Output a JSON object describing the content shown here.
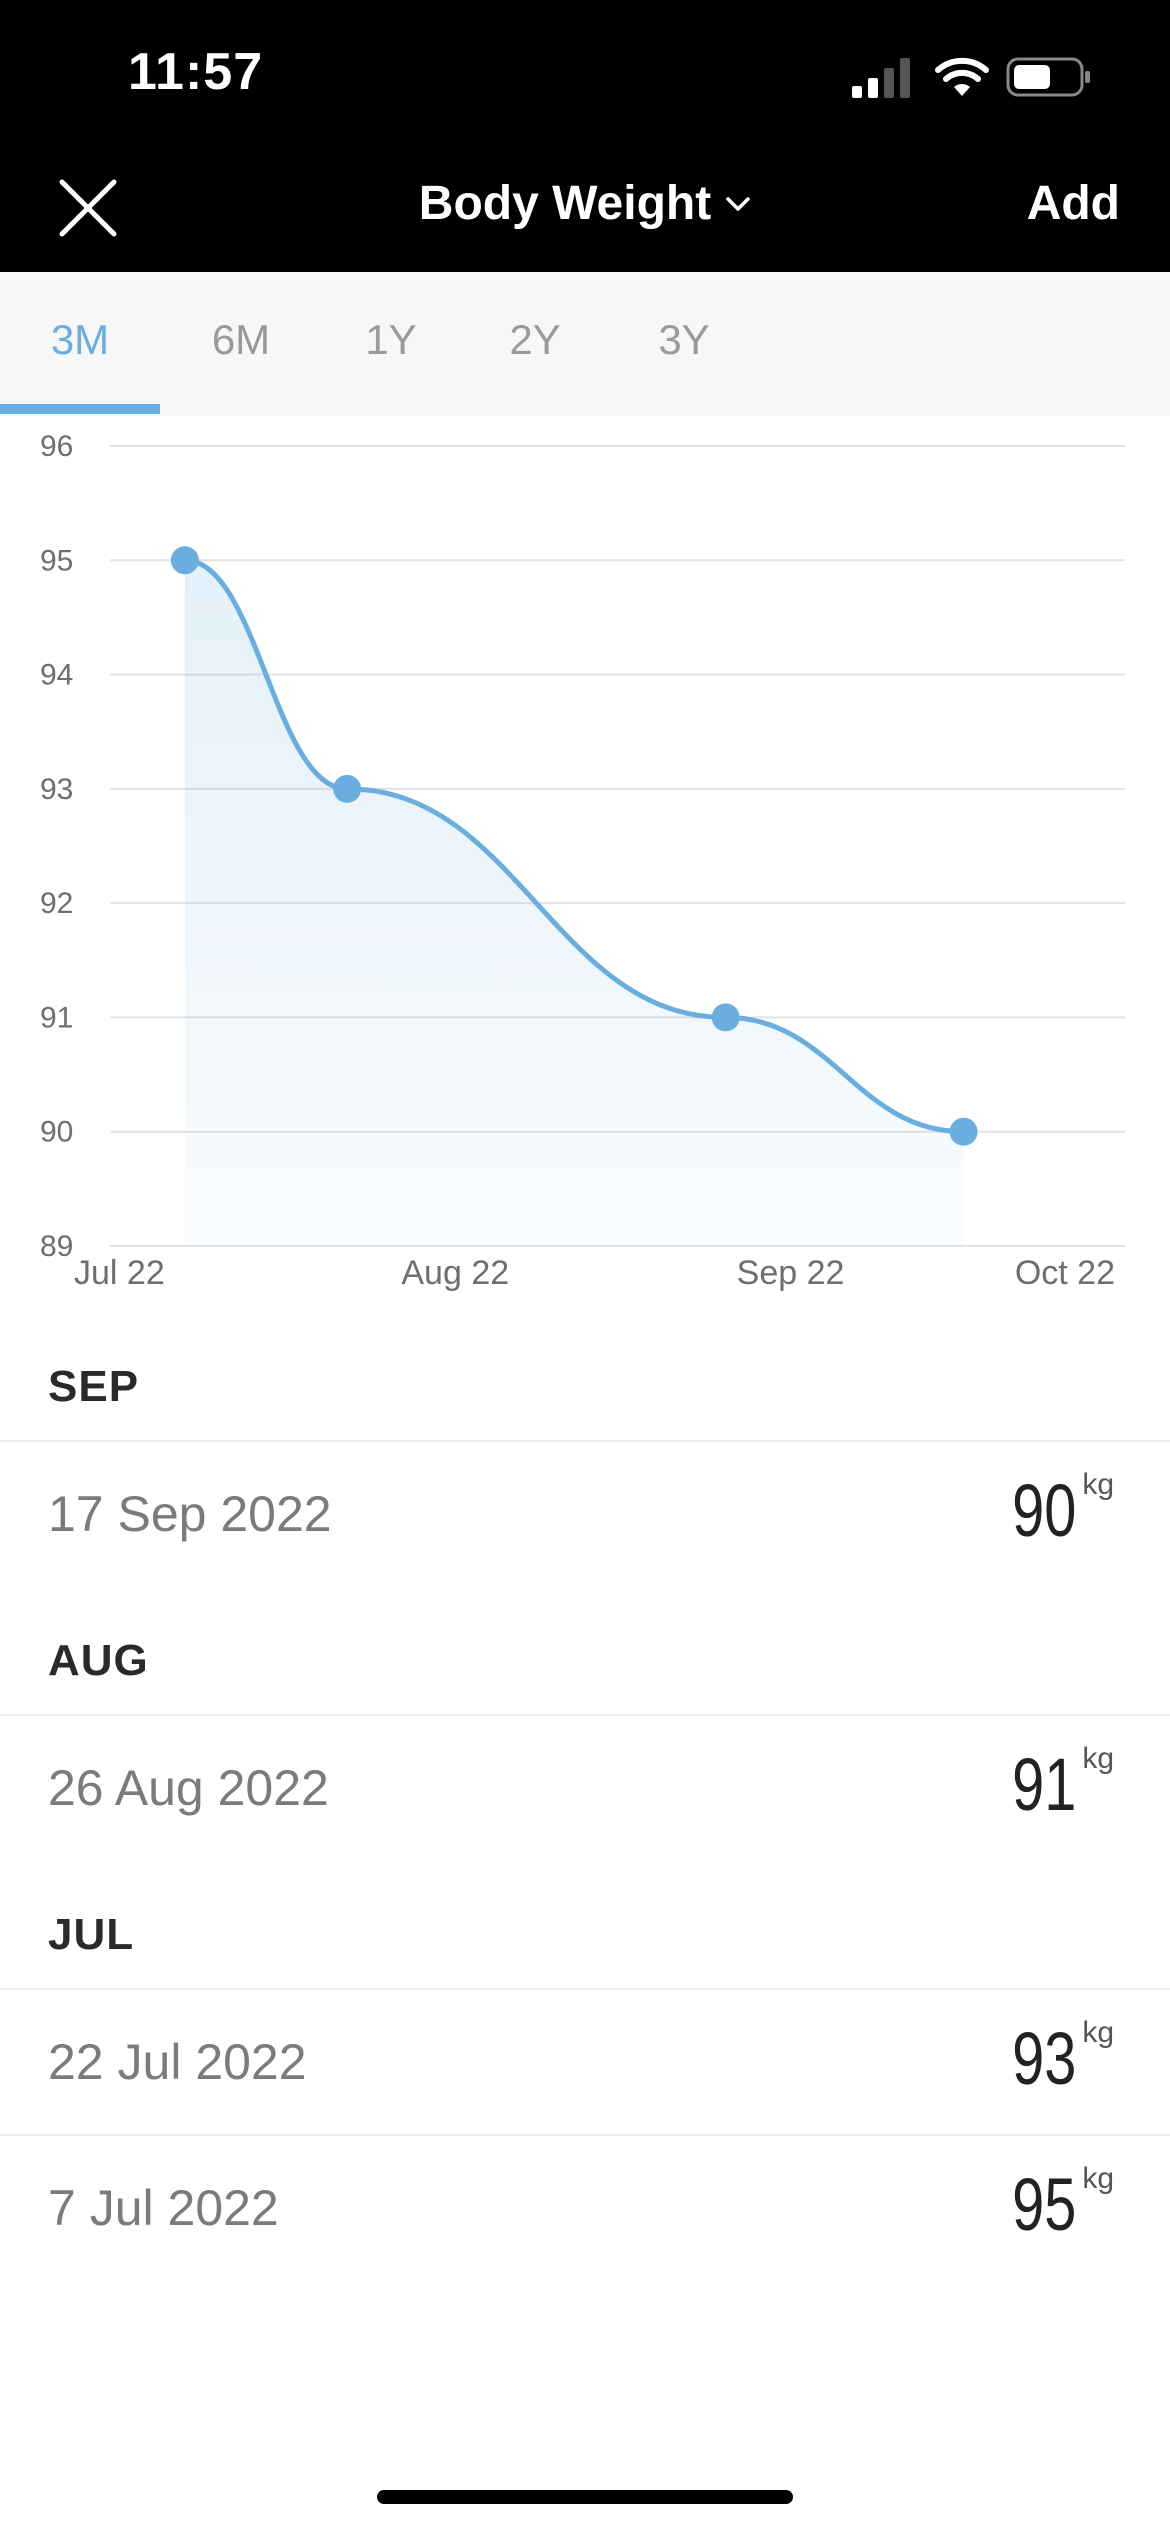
{
  "status_bar": {
    "time": "11:57"
  },
  "nav": {
    "title": "Body Weight",
    "add_label": "Add"
  },
  "tabs": [
    {
      "label": "3M",
      "active": true
    },
    {
      "label": "6M",
      "active": false
    },
    {
      "label": "1Y",
      "active": false
    },
    {
      "label": "2Y",
      "active": false
    },
    {
      "label": "3Y",
      "active": false
    }
  ],
  "colors": {
    "accent": "#6aaee0",
    "header_bg": "#000000",
    "tab_bg": "#f7f7f7"
  },
  "chart_data": {
    "type": "line",
    "title": "",
    "xlabel": "",
    "ylabel": "",
    "ylim": [
      89,
      96
    ],
    "y_ticks": [
      96,
      95,
      94,
      93,
      92,
      91,
      90,
      89
    ],
    "x_tick_labels": [
      "Jul 22",
      "Aug 22",
      "Sep 22",
      "Oct 22"
    ],
    "x_tick_dates": [
      "2022-07-01",
      "2022-08-01",
      "2022-09-01",
      "2022-10-01"
    ],
    "xlim": [
      "2022-07-01",
      "2022-10-01"
    ],
    "grid": true,
    "area_fill": true,
    "series": [
      {
        "points": [
          {
            "x": "2022-07-07",
            "y": 95
          },
          {
            "x": "2022-07-22",
            "y": 93
          },
          {
            "x": "2022-08-26",
            "y": 91
          },
          {
            "x": "2022-09-17",
            "y": 90
          }
        ]
      }
    ]
  },
  "entries": [
    {
      "month": "SEP",
      "items": [
        {
          "date": "17 Sep 2022",
          "value": "90",
          "unit": "kg"
        }
      ]
    },
    {
      "month": "AUG",
      "items": [
        {
          "date": "26 Aug 2022",
          "value": "91",
          "unit": "kg"
        }
      ]
    },
    {
      "month": "JUL",
      "items": [
        {
          "date": "22 Jul 2022",
          "value": "93",
          "unit": "kg"
        },
        {
          "date": "7 Jul 2022",
          "value": "95",
          "unit": "kg"
        }
      ]
    }
  ]
}
